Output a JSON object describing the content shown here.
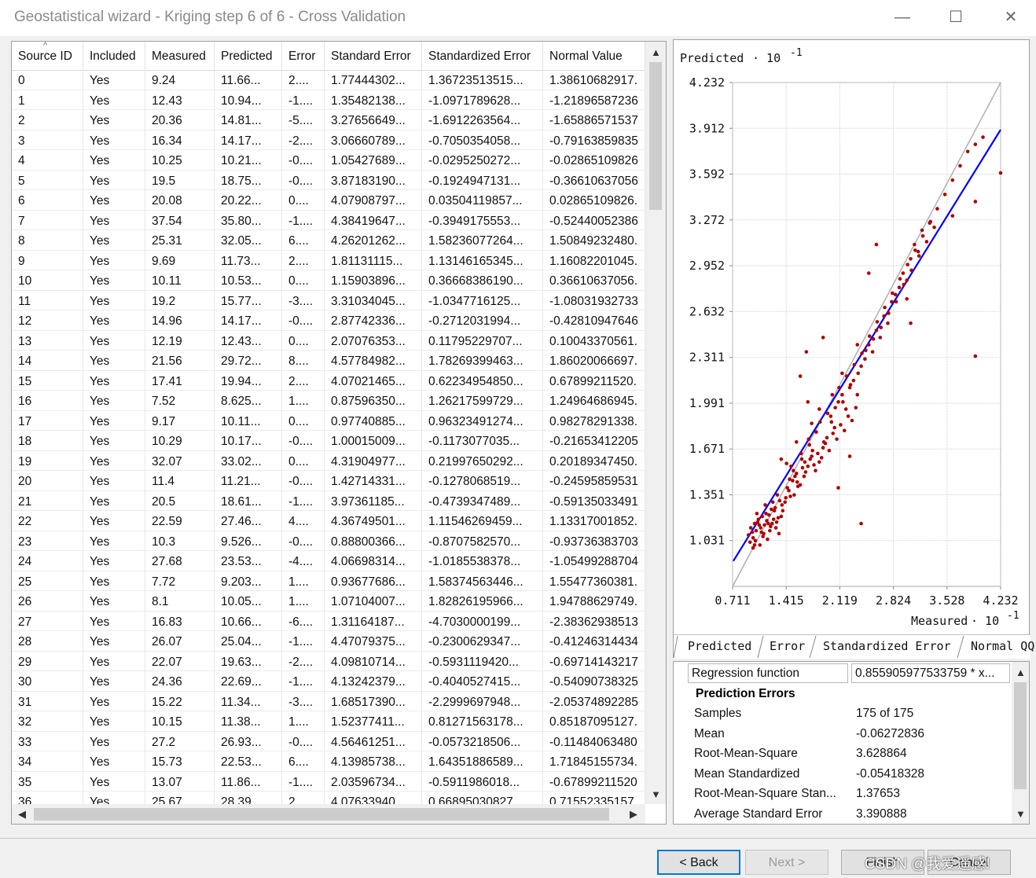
{
  "window": {
    "title": "Geostatistical wizard  - Kriging step 6 of 6 - Cross Validation",
    "minimize": "—",
    "maximize": "☐",
    "close": "✕"
  },
  "table": {
    "columns": [
      "Source ID",
      "Included",
      "Measured",
      "Predicted",
      "Error",
      "Standard Error",
      "Standardized Error",
      "Normal Value"
    ],
    "rows": [
      [
        "0",
        "Yes",
        "9.24",
        "11.66...",
        "2....",
        "1.77444302...",
        "1.36723513515...",
        "1.38610682917."
      ],
      [
        "1",
        "Yes",
        "12.43",
        "10.94...",
        "-1....",
        "1.35482138...",
        "-1.0971789628...",
        "-1.21896587236"
      ],
      [
        "2",
        "Yes",
        "20.36",
        "14.81...",
        "-5....",
        "3.27656649...",
        "-1.6912263564...",
        "-1.65886571537"
      ],
      [
        "3",
        "Yes",
        "16.34",
        "14.17...",
        "-2....",
        "3.06660789...",
        "-0.7050354058...",
        "-0.79163859835"
      ],
      [
        "4",
        "Yes",
        "10.25",
        "10.21...",
        "-0....",
        "1.05427689...",
        "-0.0295250272...",
        "-0.02865109826"
      ],
      [
        "5",
        "Yes",
        "19.5",
        "18.75...",
        "-0....",
        "3.87183190...",
        "-0.1924947131...",
        "-0.36610637056"
      ],
      [
        "6",
        "Yes",
        "20.08",
        "20.22...",
        "0....",
        "4.07908797...",
        "0.03504119857...",
        "0.02865109826."
      ],
      [
        "7",
        "Yes",
        "37.54",
        "35.80...",
        "-1....",
        "4.38419647...",
        "-0.3949175553...",
        "-0.52440052386"
      ],
      [
        "8",
        "Yes",
        "25.31",
        "32.05...",
        "6....",
        "4.26201262...",
        "1.58236077264...",
        "1.50849232480."
      ],
      [
        "9",
        "Yes",
        "9.69",
        "11.73...",
        "2....",
        "1.81131115...",
        "1.13146165345...",
        "1.16082201045."
      ],
      [
        "10",
        "Yes",
        "10.11",
        "10.53...",
        "0....",
        "1.15903896...",
        "0.36668386190...",
        "0.36610637056."
      ],
      [
        "11",
        "Yes",
        "19.2",
        "15.77...",
        "-3....",
        "3.31034045...",
        "-1.0347716125...",
        "-1.08031932733"
      ],
      [
        "12",
        "Yes",
        "14.96",
        "14.17...",
        "-0....",
        "2.87742336...",
        "-0.2712031994...",
        "-0.42810947646"
      ],
      [
        "13",
        "Yes",
        "12.19",
        "12.43...",
        "0....",
        "2.07076353...",
        "0.11795229707...",
        "0.10043370561."
      ],
      [
        "14",
        "Yes",
        "21.56",
        "29.72...",
        "8....",
        "4.57784982...",
        "1.78269399463...",
        "1.86020066697."
      ],
      [
        "15",
        "Yes",
        "17.41",
        "19.94...",
        "2....",
        "4.07021465...",
        "0.62234954850...",
        "0.67899211520."
      ],
      [
        "16",
        "Yes",
        "7.52",
        "8.625...",
        "1....",
        "0.87596350...",
        "1.26217599729...",
        "1.24964686945."
      ],
      [
        "17",
        "Yes",
        "9.17",
        "10.11...",
        "0....",
        "0.97740885...",
        "0.96323491274...",
        "0.98278291338."
      ],
      [
        "18",
        "Yes",
        "10.29",
        "10.17...",
        "-0....",
        "1.00015009...",
        "-0.1173077035...",
        "-0.21653412205"
      ],
      [
        "19",
        "Yes",
        "32.07",
        "33.02...",
        "0....",
        "4.31904977...",
        "0.21997650292...",
        "0.20189347450."
      ],
      [
        "20",
        "Yes",
        "11.4",
        "11.21...",
        "-0....",
        "1.42714331...",
        "-0.1278068519...",
        "-0.24595859531"
      ],
      [
        "21",
        "Yes",
        "20.5",
        "18.61...",
        "-1....",
        "3.97361185...",
        "-0.4739347489...",
        "-0.59135033491"
      ],
      [
        "22",
        "Yes",
        "22.59",
        "27.46...",
        "4....",
        "4.36749501...",
        "1.11546269459...",
        "1.13317001852."
      ],
      [
        "23",
        "Yes",
        "10.3",
        "9.526...",
        "-0....",
        "0.88800366...",
        "-0.8707582570...",
        "-0.93736383703"
      ],
      [
        "24",
        "Yes",
        "27.68",
        "23.53...",
        "-4....",
        "4.06698314...",
        "-1.0185538378...",
        "-1.05499288704"
      ],
      [
        "25",
        "Yes",
        "7.72",
        "9.203...",
        "1....",
        "0.93677686...",
        "1.58374563446...",
        "1.55477360381."
      ],
      [
        "26",
        "Yes",
        "8.1",
        "10.05...",
        "1....",
        "1.07104007...",
        "1.82826195966...",
        "1.94788629749."
      ],
      [
        "27",
        "Yes",
        "16.83",
        "10.66...",
        "-6....",
        "1.31164187...",
        "-4.7030000199...",
        "-2.38362938513"
      ],
      [
        "28",
        "Yes",
        "26.07",
        "25.04...",
        "-1....",
        "4.47079375...",
        "-0.2300629347...",
        "-0.41246314434"
      ],
      [
        "29",
        "Yes",
        "22.07",
        "19.63...",
        "-2....",
        "4.09810714...",
        "-0.5931119420...",
        "-0.69714143217"
      ],
      [
        "30",
        "Yes",
        "24.36",
        "22.69...",
        "-1....",
        "4.13242379...",
        "-0.4040527415...",
        "-0.54090738325"
      ],
      [
        "31",
        "Yes",
        "15.22",
        "11.34...",
        "-3....",
        "1.68517390...",
        "-2.2999697948...",
        "-2.05374892285"
      ],
      [
        "32",
        "Yes",
        "10.15",
        "11.38...",
        "1....",
        "1.52377411...",
        "0.81271563178...",
        "0.85187095127."
      ],
      [
        "33",
        "Yes",
        "27.2",
        "26.93...",
        "-0....",
        "4.56461251...",
        "-0.0573218506...",
        "-0.11484063480"
      ],
      [
        "34",
        "Yes",
        "15.73",
        "22.53...",
        "6....",
        "4.13985738...",
        "1.64351886589...",
        "1.71845155734."
      ],
      [
        "35",
        "Yes",
        "13.07",
        "11.86...",
        "-1....",
        "2.03596734...",
        "-0.5911986018...",
        "-0.67899211520"
      ],
      [
        "36",
        "Yes",
        "25.67",
        "28.39...",
        "2....",
        "4.07633940...",
        "0.66895030827...",
        "0.71552335157"
      ]
    ]
  },
  "chart_data": {
    "type": "scatter",
    "ylabel": "Predicted",
    "xlabel": "Measured",
    "exponent_label": "· 10",
    "exponent": "-1",
    "xlim": [
      0.711,
      4.232
    ],
    "ylim": [
      0.711,
      4.232
    ],
    "x_ticks": [
      "0.711",
      "1.415",
      "2.119",
      "2.824",
      "3.528",
      "4.232"
    ],
    "y_ticks": [
      "4.232",
      "3.912",
      "3.592",
      "3.272",
      "2.952",
      "2.632",
      "2.311",
      "1.991",
      "1.671",
      "1.351",
      "1.031"
    ],
    "regression": {
      "slope": 0.8559,
      "intercept": 0.28,
      "color": "#0000ff"
    },
    "reference_line": {
      "color": "#b0b0b0"
    },
    "point_color": "#b00000",
    "points": [
      [
        0.92,
        1.07
      ],
      [
        0.95,
        1.12
      ],
      [
        0.98,
        1.05
      ],
      [
        1.0,
        1.15
      ],
      [
        1.02,
        1.1
      ],
      [
        1.05,
        1.18
      ],
      [
        1.08,
        1.12
      ],
      [
        1.1,
        1.2
      ],
      [
        1.12,
        1.08
      ],
      [
        1.15,
        1.22
      ],
      [
        1.18,
        1.15
      ],
      [
        1.2,
        1.1
      ],
      [
        1.22,
        1.25
      ],
      [
        1.25,
        1.18
      ],
      [
        1.28,
        1.12
      ],
      [
        1.3,
        1.35
      ],
      [
        0.98,
        0.98
      ],
      [
        1.03,
        1.22
      ],
      [
        1.07,
        1.0
      ],
      [
        1.14,
        1.28
      ],
      [
        1.17,
        1.04
      ],
      [
        1.24,
        1.3
      ],
      [
        1.32,
        1.08
      ],
      [
        1.35,
        1.2
      ],
      [
        1.4,
        1.3
      ],
      [
        1.45,
        1.38
      ],
      [
        1.5,
        1.45
      ],
      [
        1.48,
        1.55
      ],
      [
        1.55,
        1.5
      ],
      [
        1.6,
        1.42
      ],
      [
        1.62,
        1.6
      ],
      [
        1.65,
        1.48
      ],
      [
        1.7,
        1.55
      ],
      [
        1.72,
        1.7
      ],
      [
        1.75,
        1.62
      ],
      [
        1.8,
        1.52
      ],
      [
        1.85,
        1.58
      ],
      [
        1.9,
        1.68
      ],
      [
        1.95,
        1.75
      ],
      [
        2.0,
        1.9
      ],
      [
        2.05,
        1.82
      ],
      [
        2.1,
        2.0
      ],
      [
        2.15,
        2.05
      ],
      [
        2.2,
        1.95
      ],
      [
        2.25,
        2.1
      ],
      [
        2.3,
        2.15
      ],
      [
        2.35,
        2.05
      ],
      [
        2.4,
        2.25
      ],
      [
        2.45,
        2.3
      ],
      [
        2.5,
        2.4
      ],
      [
        2.55,
        2.35
      ],
      [
        2.6,
        2.5
      ],
      [
        2.65,
        2.45
      ],
      [
        2.7,
        2.6
      ],
      [
        2.75,
        2.55
      ],
      [
        2.8,
        2.7
      ],
      [
        2.85,
        2.75
      ],
      [
        2.9,
        2.8
      ],
      [
        2.95,
        2.9
      ],
      [
        3.0,
        2.85
      ],
      [
        3.05,
        3.0
      ],
      [
        3.1,
        3.1
      ],
      [
        3.15,
        3.05
      ],
      [
        3.2,
        3.2
      ],
      [
        3.3,
        3.25
      ],
      [
        3.4,
        3.35
      ],
      [
        3.5,
        3.45
      ],
      [
        3.6,
        3.55
      ],
      [
        3.7,
        3.65
      ],
      [
        3.8,
        3.75
      ],
      [
        3.9,
        3.8
      ],
      [
        4.0,
        3.85
      ],
      [
        1.68,
        2.35
      ],
      [
        2.5,
        2.9
      ],
      [
        2.6,
        3.1
      ],
      [
        3.05,
        2.55
      ],
      [
        3.6,
        3.3
      ],
      [
        3.9,
        3.4
      ],
      [
        2.15,
        2.2
      ],
      [
        2.25,
        1.62
      ],
      [
        1.85,
        1.95
      ],
      [
        2.4,
        1.15
      ],
      [
        3.9,
        2.32
      ],
      [
        1.42,
        1.57
      ],
      [
        2.35,
        2.4
      ],
      [
        1.6,
        2.18
      ],
      [
        1.35,
        1.6
      ],
      [
        3.0,
        2.72
      ],
      [
        1.9,
        2.45
      ],
      [
        1.7,
        2.0
      ],
      [
        2.1,
        1.4
      ],
      [
        1.55,
        1.72
      ],
      [
        1.75,
        1.85
      ],
      [
        2.02,
        2.05
      ],
      [
        1.52,
        1.35
      ],
      [
        4.232,
        3.6
      ],
      [
        1.0,
        1.0
      ],
      [
        1.06,
        1.14
      ],
      [
        1.11,
        1.06
      ],
      [
        1.16,
        1.17
      ],
      [
        1.21,
        1.13
      ],
      [
        1.26,
        1.24
      ],
      [
        1.31,
        1.19
      ],
      [
        1.36,
        1.28
      ],
      [
        1.41,
        1.33
      ],
      [
        1.46,
        1.46
      ],
      [
        1.51,
        1.52
      ],
      [
        1.56,
        1.44
      ],
      [
        1.61,
        1.64
      ],
      [
        1.66,
        1.58
      ],
      [
        1.71,
        1.74
      ],
      [
        1.76,
        1.66
      ],
      [
        1.81,
        1.79
      ],
      [
        1.86,
        1.86
      ],
      [
        1.91,
        1.72
      ],
      [
        1.96,
        1.92
      ],
      [
        2.01,
        1.86
      ],
      [
        2.06,
        1.96
      ],
      [
        2.11,
        2.1
      ],
      [
        2.16,
        2.0
      ],
      [
        2.21,
        2.18
      ],
      [
        2.26,
        2.12
      ],
      [
        2.31,
        2.26
      ],
      [
        2.36,
        2.2
      ],
      [
        2.41,
        2.34
      ],
      [
        2.46,
        2.36
      ],
      [
        2.51,
        2.46
      ],
      [
        2.56,
        2.44
      ],
      [
        2.61,
        2.56
      ],
      [
        2.66,
        2.52
      ],
      [
        2.71,
        2.66
      ],
      [
        2.76,
        2.62
      ],
      [
        2.81,
        2.76
      ],
      [
        2.86,
        2.7
      ],
      [
        2.91,
        2.86
      ],
      [
        2.96,
        2.82
      ],
      [
        3.01,
        2.96
      ],
      [
        3.06,
        2.92
      ],
      [
        3.11,
        3.06
      ],
      [
        3.16,
        3.02
      ],
      [
        3.21,
        3.16
      ],
      [
        3.26,
        3.12
      ],
      [
        3.31,
        3.26
      ],
      [
        3.36,
        3.22
      ],
      [
        0.94,
        1.02
      ],
      [
        0.97,
        1.09
      ],
      [
        1.01,
        1.03
      ],
      [
        1.04,
        1.16
      ],
      [
        1.09,
        1.09
      ],
      [
        1.13,
        1.14
      ],
      [
        1.19,
        1.21
      ],
      [
        1.23,
        1.15
      ],
      [
        1.27,
        1.26
      ],
      [
        1.29,
        1.16
      ],
      [
        1.33,
        1.31
      ],
      [
        1.37,
        1.24
      ],
      [
        1.43,
        1.4
      ],
      [
        1.47,
        1.34
      ],
      [
        1.53,
        1.48
      ],
      [
        1.57,
        1.41
      ],
      [
        1.63,
        1.54
      ],
      [
        1.67,
        1.51
      ],
      [
        1.73,
        1.6
      ],
      [
        1.78,
        1.56
      ],
      [
        1.83,
        1.64
      ],
      [
        1.88,
        1.61
      ],
      [
        1.93,
        1.71
      ],
      [
        1.98,
        1.66
      ],
      [
        2.03,
        1.78
      ],
      [
        2.08,
        1.74
      ],
      [
        2.13,
        1.84
      ],
      [
        2.18,
        1.8
      ],
      [
        2.23,
        1.9
      ],
      [
        2.28,
        1.87
      ],
      [
        2.33,
        1.96
      ]
    ]
  },
  "chart_tabs": [
    "Predicted",
    "Error",
    "Standardized Error",
    "Normal QQ"
  ],
  "properties": {
    "regression_label": "Regression function",
    "regression_value": "0.855905977533759 * x...",
    "section": "Prediction Errors",
    "items": [
      {
        "name": "Samples",
        "value": "175 of 175"
      },
      {
        "name": "Mean",
        "value": "-0.06272836"
      },
      {
        "name": "Root-Mean-Square",
        "value": "3.628864"
      },
      {
        "name": "Mean Standardized",
        "value": "-0.05418328"
      },
      {
        "name": "Root-Mean-Square Stan...",
        "value": "1.37653"
      },
      {
        "name": "Average Standard Error",
        "value": "3.390888"
      }
    ]
  },
  "buttons": {
    "back": "< Back",
    "next": "Next >",
    "finish": "Finish",
    "cancel": "Cancel"
  },
  "watermark": "CSDN @我爱遥感!"
}
